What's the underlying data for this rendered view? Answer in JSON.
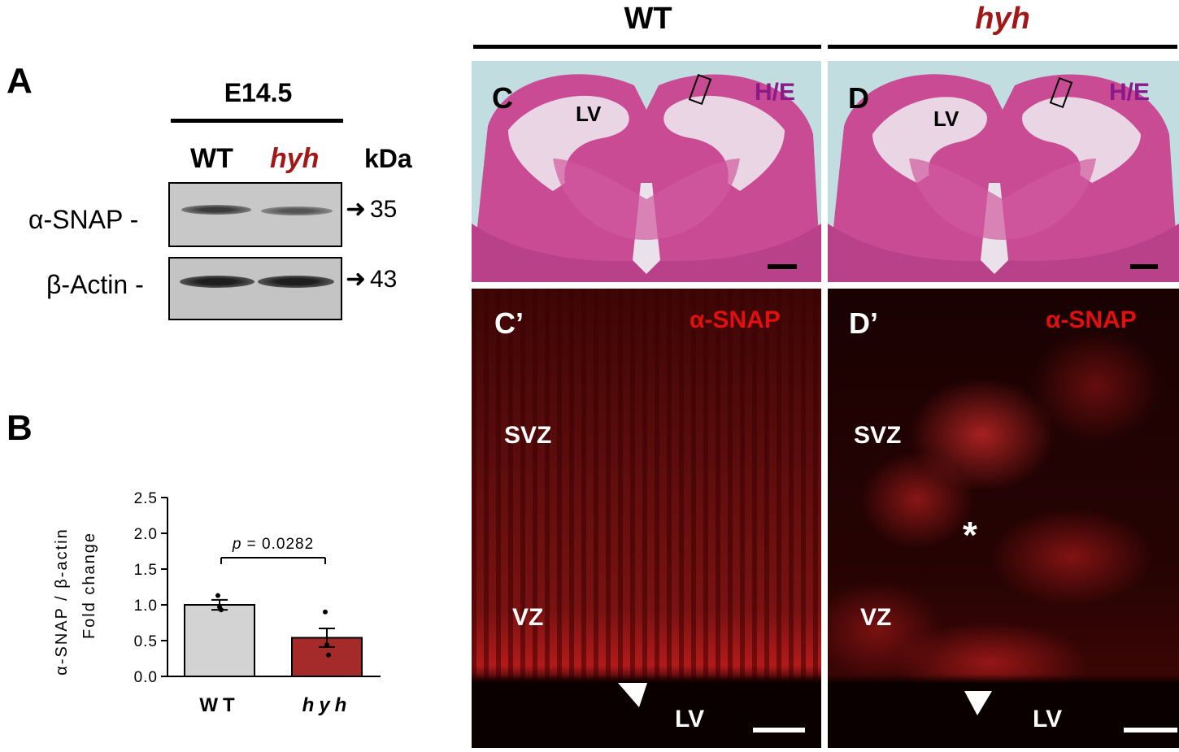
{
  "panels": {
    "A": "A",
    "B": "B",
    "C": "C",
    "D": "D",
    "Cp": "C’",
    "Dp": "D’"
  },
  "header": {
    "wt": "WT",
    "hyh": "hyh"
  },
  "blot": {
    "stage": "E14.5",
    "lane_wt": "WT",
    "lane_hyh": "hyh",
    "kda": "kDa",
    "snap_label": "α-SNAP -",
    "actin_label": "β-Actin -",
    "snap_kda": "35",
    "actin_kda": "43"
  },
  "histology": {
    "lv": "LV",
    "he": "H/E",
    "snap": "α-SNAP",
    "svz": "SVZ",
    "vz": "VZ",
    "asterisk": "*"
  },
  "chart_data": {
    "type": "bar",
    "categories": [
      "WT",
      "hyh"
    ],
    "values": [
      1.0,
      0.54
    ],
    "errors": [
      0.07,
      0.13
    ],
    "points": [
      [
        1.13,
        0.97,
        0.93
      ],
      [
        0.9,
        0.44,
        0.3
      ]
    ],
    "ylabel_line1": "α-SNAP / β-actin",
    "ylabel_line2": "Fold change",
    "ylim": [
      0,
      2.5
    ],
    "yticks": [
      "0.0",
      "0.5",
      "1.0",
      "1.5",
      "2.0",
      "2.5"
    ],
    "annotation_p": "p",
    "annotation_rest": " = 0.0282",
    "colors": [
      "#d3d3d3",
      "#a52a2a"
    ]
  }
}
